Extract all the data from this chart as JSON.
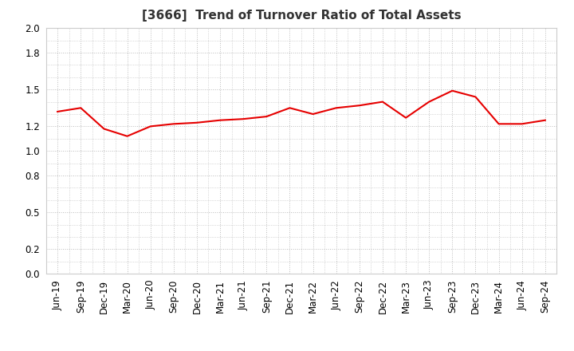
{
  "title": "[3666]  Trend of Turnover Ratio of Total Assets",
  "x_labels": [
    "Jun-19",
    "Sep-19",
    "Dec-19",
    "Mar-20",
    "Jun-20",
    "Sep-20",
    "Dec-20",
    "Mar-21",
    "Jun-21",
    "Sep-21",
    "Dec-21",
    "Mar-22",
    "Jun-22",
    "Sep-22",
    "Dec-22",
    "Mar-23",
    "Jun-23",
    "Sep-23",
    "Dec-23",
    "Mar-24",
    "Jun-24",
    "Sep-24"
  ],
  "y_values": [
    1.32,
    1.35,
    1.18,
    1.12,
    1.2,
    1.22,
    1.23,
    1.25,
    1.26,
    1.28,
    1.35,
    1.3,
    1.35,
    1.37,
    1.4,
    1.27,
    1.4,
    1.49,
    1.44,
    1.22,
    1.22,
    1.25
  ],
  "line_color": "#e60000",
  "line_width": 1.5,
  "ylim": [
    0.0,
    2.0
  ],
  "yticks": [
    0.0,
    0.2,
    0.5,
    0.8,
    1.0,
    1.2,
    1.5,
    1.8,
    2.0
  ],
  "background_color": "#ffffff",
  "plot_bg_color": "#ffffff",
  "grid_color": "#bbbbbb",
  "title_fontsize": 11,
  "tick_fontsize": 8.5
}
